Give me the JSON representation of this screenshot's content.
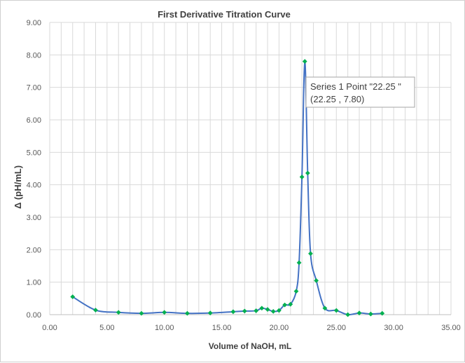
{
  "chart_data": {
    "type": "scatter",
    "title": "First Derivative Titration Curve",
    "xlabel": "Volume of NaOH, mL",
    "ylabel": "Δ (pH/mL)",
    "xlim": [
      0,
      35
    ],
    "ylim": [
      0,
      9
    ],
    "x_ticks": [
      "0.00",
      "5.00",
      "10.00",
      "15.00",
      "20.00",
      "25.00",
      "30.00",
      "35.00"
    ],
    "y_ticks": [
      "0.00",
      "1.00",
      "2.00",
      "3.00",
      "4.00",
      "5.00",
      "6.00",
      "7.00",
      "8.00",
      "9.00"
    ],
    "x_minor_step": 1,
    "grid": true,
    "line_color": "#4472c4",
    "marker_color": "#00b050",
    "series": [
      {
        "x": [
          2.0,
          4.0,
          6.0,
          8.0,
          10.0,
          12.0,
          14.0,
          16.0,
          17.0,
          18.0,
          18.5,
          19.0,
          19.5,
          20.0,
          20.5,
          21.0,
          21.5,
          21.75,
          22.0,
          22.25,
          22.5,
          22.75,
          23.25,
          24.0,
          25.0,
          26.0,
          27.0,
          28.0,
          29.0
        ],
        "y": [
          0.55,
          0.14,
          0.07,
          0.04,
          0.07,
          0.04,
          0.05,
          0.09,
          0.11,
          0.12,
          0.2,
          0.16,
          0.1,
          0.13,
          0.3,
          0.32,
          0.72,
          1.6,
          4.24,
          7.8,
          4.36,
          1.88,
          1.05,
          0.2,
          0.13,
          0.0,
          0.05,
          0.02,
          0.04
        ]
      }
    ],
    "tooltip": {
      "line1": "Series 1 Point \"22.25 \"",
      "line2": "(22.25 , 7.80)",
      "point_index": 19
    }
  }
}
